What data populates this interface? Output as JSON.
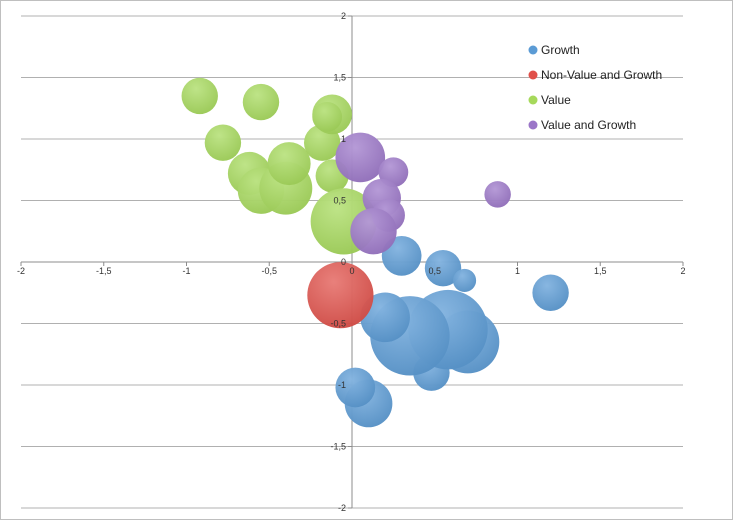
{
  "chart_data": {
    "type": "bubble",
    "xlim": [
      -2,
      2
    ],
    "ylim": [
      -2,
      2
    ],
    "x_ticks": [
      "-2",
      "-1,5",
      "-1",
      "-0,5",
      "0",
      "0,5",
      "1",
      "1,5",
      "2"
    ],
    "y_ticks": [
      "2",
      "1,5",
      "1",
      "0,5",
      "0",
      "-0,5",
      "-1",
      "-1,5",
      "-2"
    ],
    "grid": "horizontal",
    "legend_position": "top-right",
    "series": [
      {
        "name": "Growth",
        "color": "#5b9bd5",
        "points": [
          {
            "x": 1.2,
            "y": -0.25,
            "r": 0.055
          },
          {
            "x": 0.48,
            "y": -0.9,
            "r": 0.055
          },
          {
            "x": 0.7,
            "y": -0.65,
            "r": 0.095
          },
          {
            "x": 0.58,
            "y": -0.55,
            "r": 0.12
          },
          {
            "x": 0.35,
            "y": -0.6,
            "r": 0.12
          },
          {
            "x": 0.2,
            "y": -0.45,
            "r": 0.075
          },
          {
            "x": 0.55,
            "y": -0.05,
            "r": 0.055
          },
          {
            "x": 0.68,
            "y": -0.15,
            "r": 0.035
          },
          {
            "x": 0.3,
            "y": 0.05,
            "r": 0.06
          },
          {
            "x": 0.1,
            "y": -1.15,
            "r": 0.072
          },
          {
            "x": 0.02,
            "y": -1.02,
            "r": 0.06
          }
        ]
      },
      {
        "name": "Non-Value and Growth",
        "color": "#e0504a",
        "points": [
          {
            "x": -0.07,
            "y": -0.27,
            "r": 0.1
          }
        ]
      },
      {
        "name": "Value",
        "color": "#a6d95b",
        "points": [
          {
            "x": -0.92,
            "y": 1.35,
            "r": 0.055
          },
          {
            "x": -0.55,
            "y": 1.3,
            "r": 0.055
          },
          {
            "x": -0.78,
            "y": 0.97,
            "r": 0.055
          },
          {
            "x": -0.62,
            "y": 0.72,
            "r": 0.065
          },
          {
            "x": -0.55,
            "y": 0.58,
            "r": 0.07
          },
          {
            "x": -0.4,
            "y": 0.6,
            "r": 0.08
          },
          {
            "x": -0.38,
            "y": 0.8,
            "r": 0.065
          },
          {
            "x": -0.18,
            "y": 0.97,
            "r": 0.055
          },
          {
            "x": -0.12,
            "y": 0.7,
            "r": 0.05
          },
          {
            "x": -0.12,
            "y": 1.2,
            "r": 0.06
          },
          {
            "x": -0.15,
            "y": 1.18,
            "r": 0.045
          },
          {
            "x": -0.05,
            "y": 0.33,
            "r": 0.1
          }
        ]
      },
      {
        "name": "Value and Growth",
        "color": "#9b76c8",
        "points": [
          {
            "x": 0.88,
            "y": 0.55,
            "r": 0.04
          },
          {
            "x": 0.05,
            "y": 0.85,
            "r": 0.075
          },
          {
            "x": 0.25,
            "y": 0.73,
            "r": 0.045
          },
          {
            "x": 0.18,
            "y": 0.52,
            "r": 0.058
          },
          {
            "x": 0.22,
            "y": 0.38,
            "r": 0.05
          },
          {
            "x": 0.13,
            "y": 0.25,
            "r": 0.07
          }
        ]
      }
    ]
  }
}
